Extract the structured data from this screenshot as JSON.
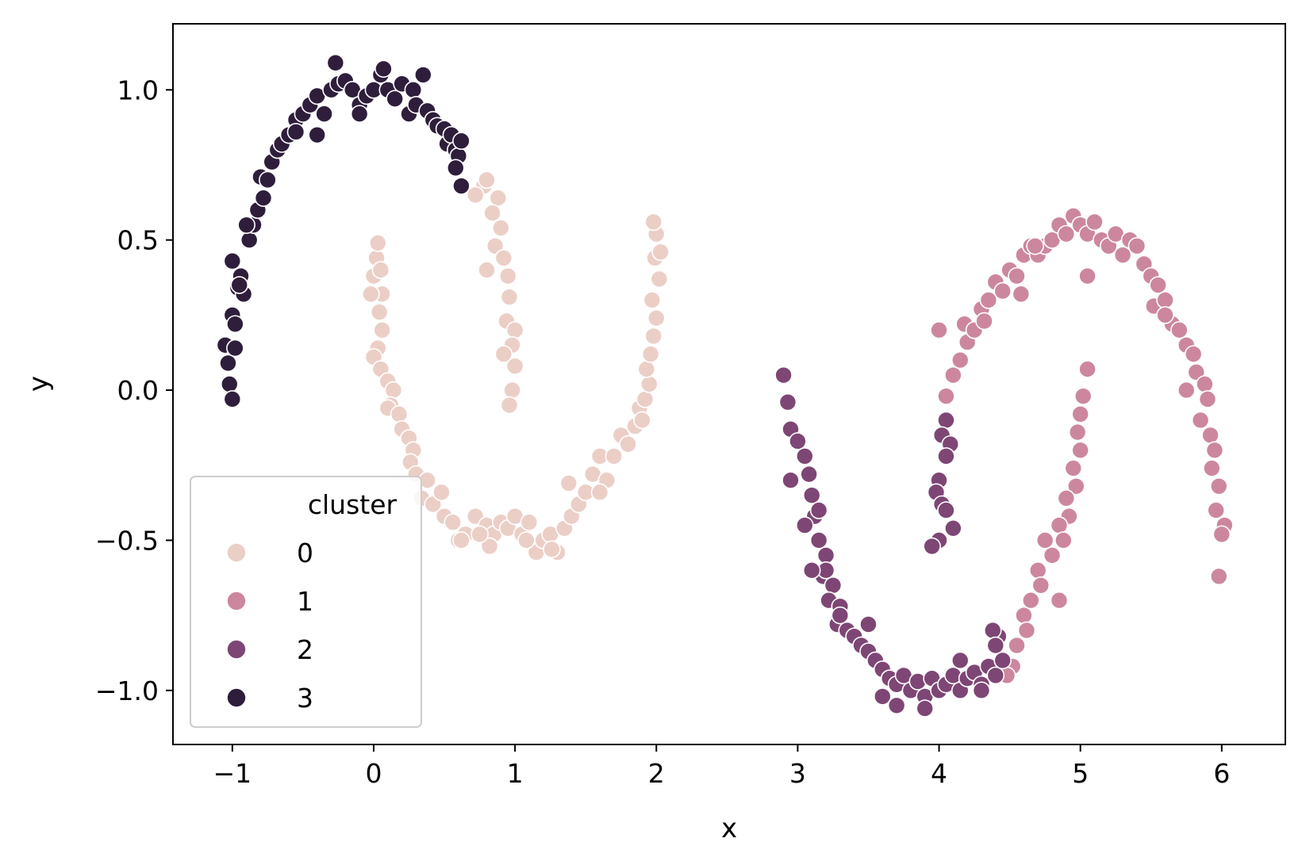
{
  "chart_data": {
    "type": "scatter",
    "title": "",
    "xlabel": "x",
    "ylabel": "y",
    "xlim": [
      -1.42,
      6.45
    ],
    "ylim": [
      -1.18,
      1.22
    ],
    "xticks": [
      -1,
      0,
      1,
      2,
      3,
      4,
      5,
      6
    ],
    "xtick_labels": [
      "−1",
      "0",
      "1",
      "2",
      "3",
      "4",
      "5",
      "6"
    ],
    "yticks": [
      -1.0,
      -0.5,
      0.0,
      0.5,
      1.0
    ],
    "ytick_labels": [
      "−1.0",
      "−0.5",
      "0.0",
      "0.5",
      "1.0"
    ],
    "grid": false,
    "legend": {
      "title": "cluster",
      "position": "lower-left"
    },
    "series": [
      {
        "name": "0",
        "color": "#ebcfc7",
        "points": [
          [
            0.0,
            0.38
          ],
          [
            0.02,
            0.44
          ],
          [
            0.03,
            0.49
          ],
          [
            0.05,
            0.4
          ],
          [
            0.06,
            0.32
          ],
          [
            -0.02,
            0.32
          ],
          [
            0.04,
            0.26
          ],
          [
            0.06,
            0.2
          ],
          [
            0.03,
            0.14
          ],
          [
            0.0,
            0.11
          ],
          [
            0.05,
            0.07
          ],
          [
            0.1,
            0.03
          ],
          [
            0.14,
            0.0
          ],
          [
            0.12,
            -0.05
          ],
          [
            0.1,
            -0.06
          ],
          [
            0.18,
            -0.08
          ],
          [
            0.2,
            -0.13
          ],
          [
            0.25,
            -0.16
          ],
          [
            0.28,
            -0.2
          ],
          [
            0.26,
            -0.24
          ],
          [
            0.3,
            -0.28
          ],
          [
            0.38,
            -0.3
          ],
          [
            0.34,
            -0.36
          ],
          [
            0.42,
            -0.38
          ],
          [
            0.48,
            -0.34
          ],
          [
            0.5,
            -0.42
          ],
          [
            0.56,
            -0.44
          ],
          [
            0.6,
            -0.5
          ],
          [
            0.65,
            -0.48
          ],
          [
            0.72,
            -0.42
          ],
          [
            0.8,
            -0.45
          ],
          [
            0.85,
            -0.48
          ],
          [
            0.9,
            -0.44
          ],
          [
            0.95,
            -0.46
          ],
          [
            1.0,
            -0.42
          ],
          [
            1.05,
            -0.48
          ],
          [
            1.1,
            -0.44
          ],
          [
            1.15,
            -0.54
          ],
          [
            1.2,
            -0.5
          ],
          [
            1.25,
            -0.48
          ],
          [
            1.3,
            -0.54
          ],
          [
            1.35,
            -0.46
          ],
          [
            1.4,
            -0.42
          ],
          [
            1.45,
            -0.38
          ],
          [
            1.5,
            -0.34
          ],
          [
            1.38,
            -0.31
          ],
          [
            1.55,
            -0.28
          ],
          [
            1.6,
            -0.22
          ],
          [
            1.65,
            -0.3
          ],
          [
            1.7,
            -0.22
          ],
          [
            1.75,
            -0.15
          ],
          [
            1.8,
            -0.18
          ],
          [
            1.85,
            -0.12
          ],
          [
            1.88,
            -0.06
          ],
          [
            1.9,
            -0.1
          ],
          [
            1.92,
            -0.03
          ],
          [
            1.95,
            0.02
          ],
          [
            1.93,
            0.07
          ],
          [
            1.96,
            0.12
          ],
          [
            1.98,
            0.18
          ],
          [
            2.0,
            0.24
          ],
          [
            1.97,
            0.3
          ],
          [
            2.02,
            0.37
          ],
          [
            1.99,
            0.44
          ],
          [
            2.03,
            0.46
          ],
          [
            2.0,
            0.52
          ],
          [
            1.98,
            0.56
          ],
          [
            0.78,
            0.68
          ],
          [
            0.72,
            0.65
          ],
          [
            0.8,
            0.7
          ],
          [
            0.88,
            0.64
          ],
          [
            0.84,
            0.59
          ],
          [
            0.9,
            0.54
          ],
          [
            0.86,
            0.48
          ],
          [
            0.92,
            0.44
          ],
          [
            0.8,
            0.4
          ],
          [
            0.95,
            0.38
          ],
          [
            0.96,
            0.31
          ],
          [
            0.94,
            0.23
          ],
          [
            1.0,
            0.2
          ],
          [
            0.98,
            0.15
          ],
          [
            0.92,
            0.12
          ],
          [
            1.0,
            0.08
          ],
          [
            0.98,
            0.0
          ],
          [
            0.96,
            -0.05
          ],
          [
            0.82,
            -0.52
          ],
          [
            0.75,
            -0.48
          ],
          [
            0.62,
            -0.5
          ],
          [
            1.08,
            -0.5
          ],
          [
            1.26,
            -0.53
          ],
          [
            1.6,
            -0.34
          ]
        ]
      },
      {
        "name": "1",
        "color": "#cc879e",
        "points": [
          [
            4.05,
            -0.02
          ],
          [
            4.1,
            0.05
          ],
          [
            4.15,
            0.1
          ],
          [
            4.2,
            0.16
          ],
          [
            4.18,
            0.22
          ],
          [
            4.25,
            0.2
          ],
          [
            4.3,
            0.27
          ],
          [
            4.32,
            0.23
          ],
          [
            4.35,
            0.3
          ],
          [
            4.4,
            0.36
          ],
          [
            4.45,
            0.33
          ],
          [
            4.5,
            0.4
          ],
          [
            4.55,
            0.38
          ],
          [
            4.6,
            0.45
          ],
          [
            4.58,
            0.32
          ],
          [
            4.65,
            0.48
          ],
          [
            4.7,
            0.45
          ],
          [
            4.75,
            0.48
          ],
          [
            4.8,
            0.5
          ],
          [
            4.85,
            0.55
          ],
          [
            4.9,
            0.52
          ],
          [
            4.95,
            0.58
          ],
          [
            5.0,
            0.55
          ],
          [
            5.05,
            0.52
          ],
          [
            5.1,
            0.56
          ],
          [
            5.15,
            0.5
          ],
          [
            5.2,
            0.48
          ],
          [
            5.25,
            0.52
          ],
          [
            5.3,
            0.45
          ],
          [
            5.35,
            0.5
          ],
          [
            5.4,
            0.48
          ],
          [
            5.45,
            0.42
          ],
          [
            5.5,
            0.38
          ],
          [
            5.55,
            0.35
          ],
          [
            5.52,
            0.28
          ],
          [
            5.6,
            0.3
          ],
          [
            5.65,
            0.22
          ],
          [
            5.7,
            0.2
          ],
          [
            5.75,
            0.15
          ],
          [
            5.8,
            0.12
          ],
          [
            5.82,
            0.06
          ],
          [
            5.88,
            0.02
          ],
          [
            5.9,
            -0.03
          ],
          [
            5.85,
            -0.1
          ],
          [
            5.92,
            -0.15
          ],
          [
            5.95,
            -0.2
          ],
          [
            5.93,
            -0.26
          ],
          [
            5.98,
            -0.32
          ],
          [
            5.96,
            -0.4
          ],
          [
            6.02,
            -0.45
          ],
          [
            6.0,
            -0.48
          ],
          [
            5.98,
            -0.62
          ],
          [
            5.05,
            0.07
          ],
          [
            5.02,
            -0.02
          ],
          [
            5.0,
            -0.08
          ],
          [
            4.98,
            -0.14
          ],
          [
            5.0,
            -0.2
          ],
          [
            4.95,
            -0.26
          ],
          [
            4.97,
            -0.32
          ],
          [
            4.9,
            -0.36
          ],
          [
            4.92,
            -0.42
          ],
          [
            4.85,
            -0.45
          ],
          [
            4.88,
            -0.5
          ],
          [
            4.8,
            -0.55
          ],
          [
            4.75,
            -0.5
          ],
          [
            4.7,
            -0.6
          ],
          [
            4.72,
            -0.65
          ],
          [
            4.65,
            -0.7
          ],
          [
            4.6,
            -0.75
          ],
          [
            4.62,
            -0.8
          ],
          [
            4.55,
            -0.85
          ],
          [
            4.52,
            -0.92
          ],
          [
            4.48,
            -0.95
          ],
          [
            4.85,
            -0.7
          ],
          [
            4.0,
            0.2
          ],
          [
            4.68,
            0.48
          ],
          [
            5.05,
            0.38
          ],
          [
            5.6,
            0.25
          ],
          [
            5.75,
            0.0
          ]
        ]
      },
      {
        "name": "2",
        "color": "#7e4675",
        "points": [
          [
            2.9,
            0.05
          ],
          [
            2.93,
            -0.04
          ],
          [
            2.95,
            -0.13
          ],
          [
            3.0,
            -0.17
          ],
          [
            3.05,
            -0.22
          ],
          [
            3.08,
            -0.28
          ],
          [
            3.1,
            -0.35
          ],
          [
            3.12,
            -0.42
          ],
          [
            3.05,
            -0.45
          ],
          [
            3.15,
            -0.5
          ],
          [
            3.2,
            -0.55
          ],
          [
            3.18,
            -0.62
          ],
          [
            3.25,
            -0.65
          ],
          [
            3.22,
            -0.7
          ],
          [
            3.3,
            -0.72
          ],
          [
            3.28,
            -0.78
          ],
          [
            3.35,
            -0.8
          ],
          [
            3.4,
            -0.82
          ],
          [
            3.45,
            -0.85
          ],
          [
            3.5,
            -0.87
          ],
          [
            3.55,
            -0.9
          ],
          [
            3.6,
            -0.93
          ],
          [
            3.65,
            -0.96
          ],
          [
            3.7,
            -0.98
          ],
          [
            3.75,
            -0.95
          ],
          [
            3.8,
            -1.0
          ],
          [
            3.85,
            -0.97
          ],
          [
            3.9,
            -1.02
          ],
          [
            3.95,
            -0.96
          ],
          [
            4.0,
            -1.0
          ],
          [
            4.05,
            -0.98
          ],
          [
            4.1,
            -0.95
          ],
          [
            4.15,
            -1.0
          ],
          [
            4.2,
            -0.96
          ],
          [
            4.25,
            -0.94
          ],
          [
            4.3,
            -0.98
          ],
          [
            4.35,
            -0.92
          ],
          [
            4.4,
            -0.95
          ],
          [
            4.45,
            -0.9
          ],
          [
            4.42,
            -0.82
          ],
          [
            4.38,
            -0.8
          ],
          [
            3.7,
            -1.05
          ],
          [
            3.9,
            -1.06
          ],
          [
            3.6,
            -1.02
          ],
          [
            4.05,
            -0.1
          ],
          [
            4.02,
            -0.15
          ],
          [
            4.08,
            -0.18
          ],
          [
            4.05,
            -0.22
          ],
          [
            4.0,
            -0.3
          ],
          [
            3.98,
            -0.34
          ],
          [
            4.02,
            -0.38
          ],
          [
            4.05,
            -0.4
          ],
          [
            4.1,
            -0.46
          ],
          [
            4.0,
            -0.5
          ],
          [
            3.95,
            -0.52
          ],
          [
            3.2,
            -0.6
          ],
          [
            3.1,
            -0.6
          ],
          [
            3.3,
            -0.75
          ],
          [
            3.5,
            -0.78
          ],
          [
            2.95,
            -0.3
          ],
          [
            3.15,
            -0.4
          ],
          [
            4.4,
            -0.85
          ],
          [
            4.3,
            -1.0
          ],
          [
            4.15,
            -0.9
          ]
        ]
      },
      {
        "name": "3",
        "color": "#2e1e3b",
        "points": [
          [
            -1.05,
            0.15
          ],
          [
            -1.02,
            0.02
          ],
          [
            -1.0,
            -0.03
          ],
          [
            -1.03,
            0.09
          ],
          [
            -0.98,
            0.14
          ],
          [
            -1.0,
            0.25
          ],
          [
            -0.98,
            0.22
          ],
          [
            -0.96,
            0.34
          ],
          [
            -0.94,
            0.38
          ],
          [
            -0.92,
            0.32
          ],
          [
            -1.0,
            0.43
          ],
          [
            -0.88,
            0.5
          ],
          [
            -0.85,
            0.55
          ],
          [
            -0.82,
            0.6
          ],
          [
            -0.78,
            0.64
          ],
          [
            -0.8,
            0.71
          ],
          [
            -0.75,
            0.7
          ],
          [
            -0.72,
            0.76
          ],
          [
            -0.68,
            0.8
          ],
          [
            -0.65,
            0.82
          ],
          [
            -0.6,
            0.85
          ],
          [
            -0.55,
            0.9
          ],
          [
            -0.5,
            0.92
          ],
          [
            -0.45,
            0.95
          ],
          [
            -0.4,
            0.98
          ],
          [
            -0.35,
            0.92
          ],
          [
            -0.3,
            1.0
          ],
          [
            -0.25,
            1.02
          ],
          [
            -0.27,
            1.09
          ],
          [
            -0.2,
            1.03
          ],
          [
            -0.15,
            1.0
          ],
          [
            -0.1,
            0.95
          ],
          [
            -0.05,
            0.98
          ],
          [
            0.0,
            1.0
          ],
          [
            0.05,
            1.05
          ],
          [
            0.07,
            1.07
          ],
          [
            0.1,
            1.0
          ],
          [
            0.15,
            0.97
          ],
          [
            0.2,
            1.02
          ],
          [
            0.25,
            0.92
          ],
          [
            0.28,
            1.0
          ],
          [
            0.3,
            0.95
          ],
          [
            0.35,
            1.05
          ],
          [
            0.38,
            0.93
          ],
          [
            0.42,
            0.9
          ],
          [
            0.45,
            0.88
          ],
          [
            0.5,
            0.87
          ],
          [
            0.52,
            0.82
          ],
          [
            0.55,
            0.85
          ],
          [
            0.58,
            0.8
          ],
          [
            0.6,
            0.78
          ],
          [
            0.62,
            0.83
          ],
          [
            0.58,
            0.74
          ],
          [
            0.62,
            0.68
          ],
          [
            -0.1,
            0.92
          ],
          [
            -0.55,
            0.86
          ],
          [
            -0.4,
            0.85
          ],
          [
            -0.9,
            0.55
          ],
          [
            -0.95,
            0.35
          ]
        ]
      }
    ]
  }
}
